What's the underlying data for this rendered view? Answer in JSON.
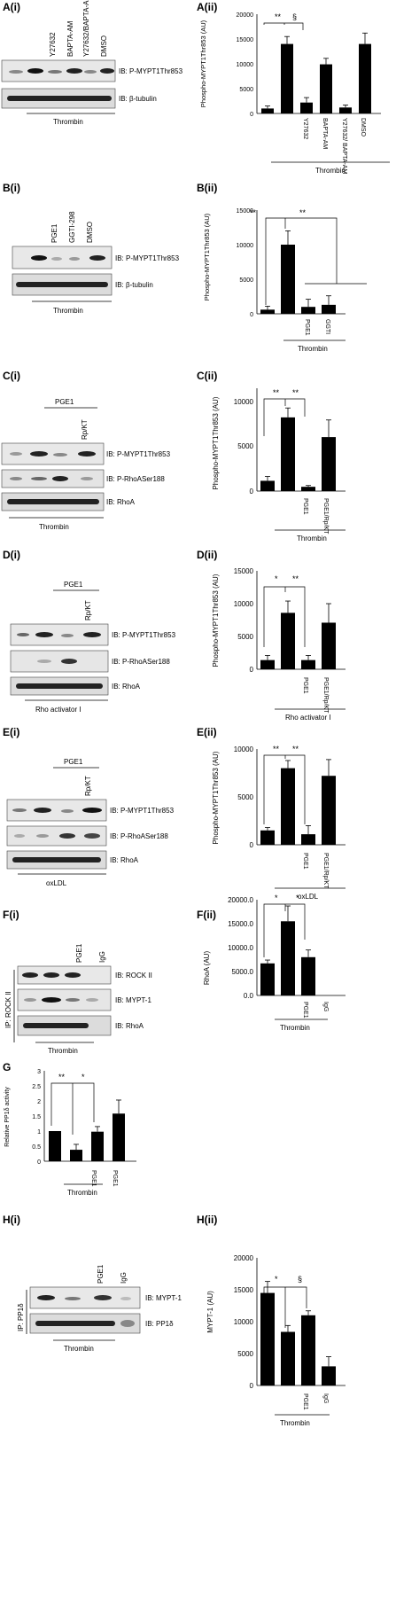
{
  "figure": {
    "panels": {
      "A_i": {
        "label": "A(i)",
        "lanes": [
          "Y27632",
          "BAPTA-AM",
          "Y27632/BAPTA-AM",
          "DMSO"
        ],
        "blots": [
          "IB: P-MYPT1Thr853",
          "IB: β-tubulin"
        ],
        "footer": "Thrombin"
      },
      "A_ii": {
        "label": "A(ii)",
        "ylabel": "Phospho-MYPT1Thr853 (AU)",
        "ticks": [
          "0",
          "5000",
          "10000",
          "15000",
          "20000"
        ],
        "xlabels": [
          "Y27632",
          "BAPTA-AM",
          "Y27632/ BAPTA-AM",
          "DMSO"
        ],
        "sig": [
          "**",
          "§"
        ],
        "footer": "Thrombin"
      },
      "B_i": {
        "label": "B(i)",
        "lanes": [
          "PGE1",
          "GGTI-298",
          "DMSO"
        ],
        "blots": [
          "IB: P-MYPT1Thr853",
          "IB: β-tubulin"
        ],
        "footer": "Thrombin"
      },
      "B_ii": {
        "label": "B(ii)",
        "ylabel": "Phospho-MYPT1Thr853 (AU)",
        "ticks": [
          "0",
          "5000",
          "10000",
          "15000"
        ],
        "xlabels": [
          "PGE1",
          "GGTI"
        ],
        "sig": [
          "**",
          "**"
        ],
        "footer": "Thrombin"
      },
      "C_i": {
        "label": "C(i)",
        "group": "PGE1",
        "lanes": [
          "Rp/KT"
        ],
        "blots": [
          "IB: P-MYPT1Thr853",
          "IB: P-RhoASer188",
          "IB: RhoA"
        ],
        "footer": "Thrombin"
      },
      "C_ii": {
        "label": "C(ii)",
        "ylabel": "Phospho-MYPT1Thr853 (AU)",
        "ticks": [
          "0",
          "5000",
          "10000"
        ],
        "xlabels": [
          "PGE1",
          "PGE1/Rp/KT"
        ],
        "sig": [
          "**",
          "**"
        ],
        "footer": "Thrombin"
      },
      "D_i": {
        "label": "D(i)",
        "group": "PGE1",
        "lanes": [
          "Rp/KT"
        ],
        "blots": [
          "IB: P-MYPT1Thr853",
          "IB: P-RhoASer188",
          "IB: RhoA"
        ],
        "footer": "Rho activator I"
      },
      "D_ii": {
        "label": "D(ii)",
        "ylabel": "Phospho-MYPT1Thr853 (AU)",
        "ticks": [
          "0",
          "5000",
          "10000",
          "15000"
        ],
        "xlabels": [
          "PGE1",
          "PGE1/Rp/KT"
        ],
        "sig": [
          "*",
          "**"
        ],
        "footer": "Rho activator I"
      },
      "E_i": {
        "label": "E(i)",
        "group": "PGE1",
        "lanes": [
          "Rp/KT"
        ],
        "blots": [
          "IB: P-MYPT1Thr853",
          "IB: P-RhoASer188",
          "IB: RhoA"
        ],
        "footer": "oxLDL"
      },
      "E_ii": {
        "label": "E(ii)",
        "ylabel": "Phospho-MYPT1Thr853 (AU)",
        "ticks": [
          "0",
          "5000",
          "10000"
        ],
        "xlabels": [
          "PGE1",
          "PGE1/Rp/KT"
        ],
        "sig": [
          "**",
          "**"
        ],
        "footer": "oxLDL"
      },
      "F_i": {
        "label": "F(i)",
        "side": "IP: ROCK II",
        "lanes": [
          "PGE1",
          "IgG"
        ],
        "blots": [
          "IB: ROCK II",
          "IB: MYPT-1",
          "IB: RhoA"
        ],
        "footer": "Thrombin"
      },
      "F_ii": {
        "label": "F(ii)",
        "ylabel": "RhoA (AU)",
        "ticks": [
          "0.0",
          "5000.0",
          "10000.0",
          "15000.0",
          "20000.0"
        ],
        "xlabels": [
          "PGE1",
          "IgG"
        ],
        "sig": [
          "*",
          "*"
        ],
        "footer": "Thrombin"
      },
      "G": {
        "label": "G",
        "ylabel": "Relative PP1δ activity",
        "ticks": [
          "0",
          "0.5",
          "1",
          "1.5",
          "2",
          "2.5",
          "3"
        ],
        "xlabels": [
          "PGE1",
          "PGE1"
        ],
        "sig": [
          "**",
          "*"
        ],
        "footer": "Thrombin"
      },
      "H_i": {
        "label": "H(i)",
        "side": "IP: PP1δ",
        "lanes": [
          "PGE1",
          "IgG"
        ],
        "blots": [
          "IB: MYPT-1",
          "IB: PP1δ"
        ],
        "footer": "Thrombin"
      },
      "H_ii": {
        "label": "H(ii)",
        "ylabel": "MYPT-1 (AU)",
        "ticks": [
          "0",
          "5000",
          "10000",
          "15000",
          "20000"
        ],
        "xlabels": [
          "PGE1",
          "IgG"
        ],
        "sig": [
          "*",
          "§"
        ],
        "footer": "Thrombin"
      }
    }
  },
  "chart_data": [
    {
      "panel": "A(ii)",
      "type": "bar",
      "ylabel": "Phospho-MYPT1Thr853 (AU)",
      "ylim": [
        0,
        20000
      ],
      "values": [
        1000,
        14000,
        2200,
        9900,
        1200,
        14000
      ],
      "errors": [
        500,
        1500,
        1000,
        1200,
        500,
        2200
      ]
    },
    {
      "panel": "B(ii)",
      "type": "bar",
      "ylabel": "Phospho-MYPT1Thr853 (AU)",
      "ylim": [
        0,
        15000
      ],
      "values": [
        600,
        10000,
        1000,
        1300
      ],
      "errors": [
        500,
        2000,
        1100,
        1300
      ]
    },
    {
      "panel": "C(ii)",
      "type": "bar",
      "ylabel": "Phospho-MYPT1Thr853 (AU)",
      "ylim": [
        0,
        12000
      ],
      "values": [
        1200,
        8600,
        500,
        6300
      ],
      "errors": [
        500,
        1100,
        150,
        2000
      ]
    },
    {
      "panel": "D(ii)",
      "type": "bar",
      "ylabel": "Phospho-MYPT1Thr853 (AU)",
      "ylim": [
        0,
        15000
      ],
      "values": [
        1400,
        8600,
        1400,
        7100
      ],
      "errors": [
        700,
        1800,
        700,
        2900
      ]
    },
    {
      "panel": "E(ii)",
      "type": "bar",
      "ylabel": "Phospho-MYPT1Thr853 (AU)",
      "ylim": [
        0,
        10000
      ],
      "values": [
        1500,
        8000,
        1100,
        7200
      ],
      "errors": [
        300,
        800,
        900,
        1700
      ]
    },
    {
      "panel": "F(ii)",
      "type": "bar",
      "ylabel": "RhoA (AU)",
      "ylim": [
        0,
        20000
      ],
      "values": [
        6700,
        15500,
        8000,
        0
      ],
      "errors": [
        700,
        3200,
        1500,
        0
      ]
    },
    {
      "panel": "G",
      "type": "bar",
      "ylabel": "Relative PP1δ activity",
      "ylim": [
        0,
        3
      ],
      "values": [
        1.0,
        0.38,
        0.98,
        1.58
      ],
      "errors": [
        0,
        0.18,
        0.17,
        0.45
      ]
    },
    {
      "panel": "H(ii)",
      "type": "bar",
      "ylabel": "MYPT-1 (AU)",
      "ylim": [
        0,
        20000
      ],
      "values": [
        14500,
        8400,
        11000,
        3000
      ],
      "errors": [
        1800,
        1000,
        700,
        1500
      ]
    }
  ]
}
